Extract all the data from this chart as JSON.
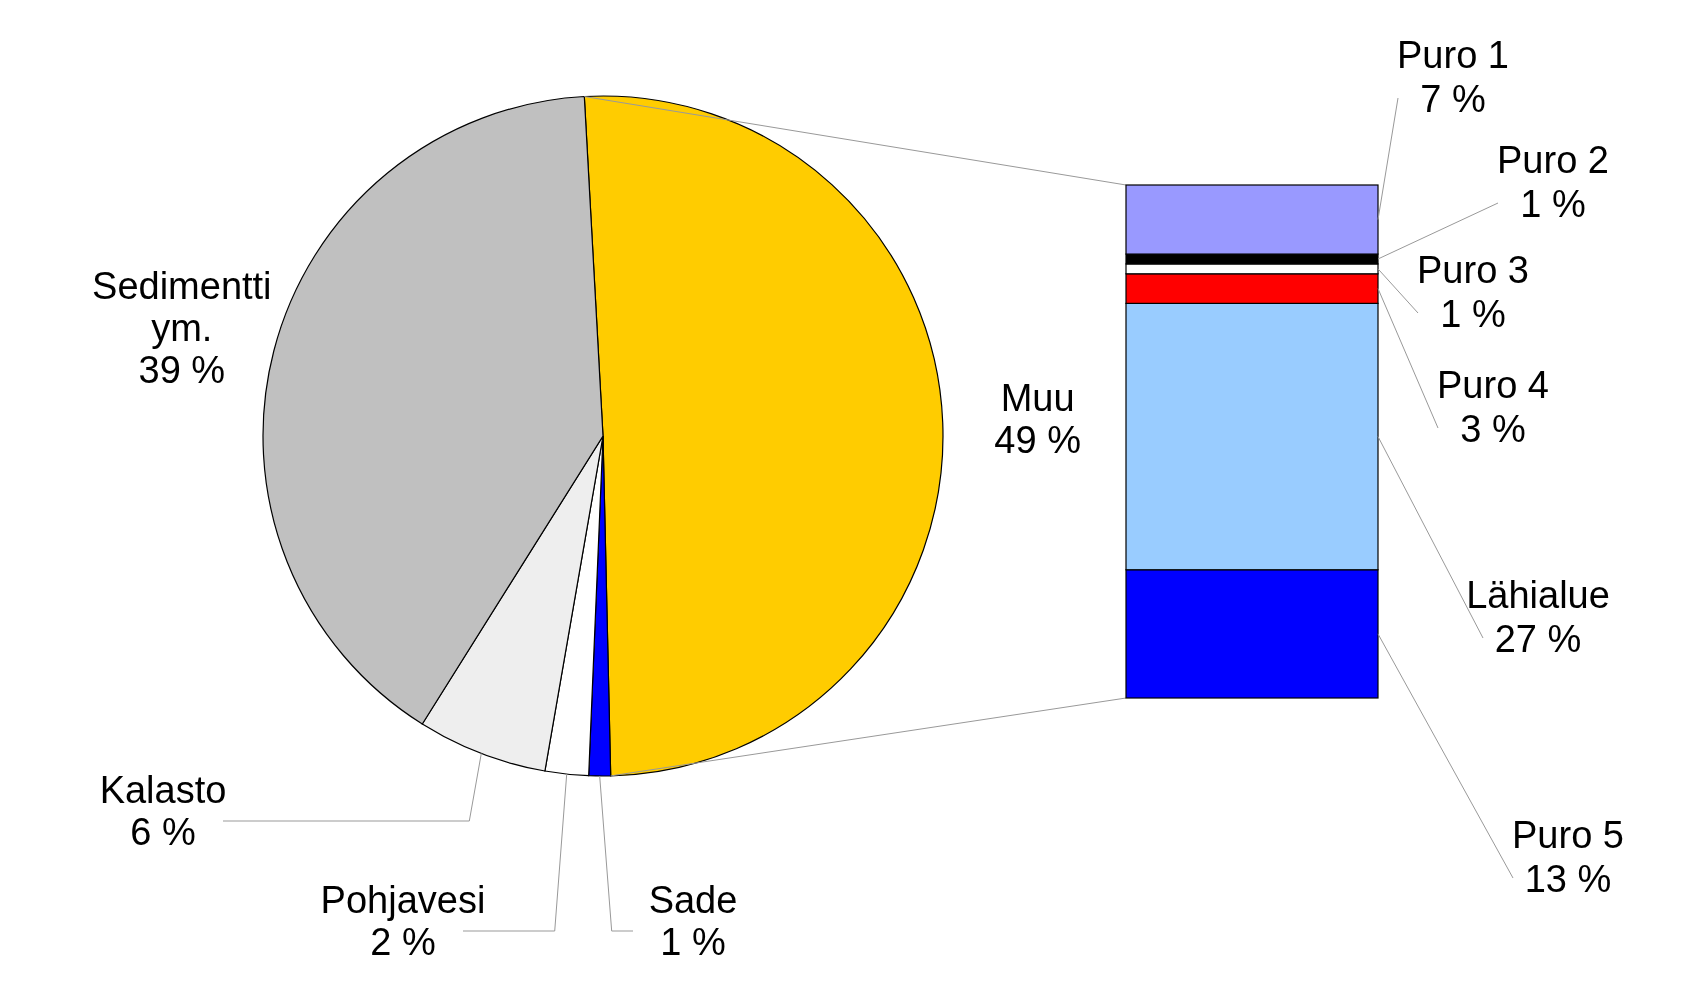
{
  "chart_data": [
    {
      "type": "pie",
      "categories": [
        "Muu",
        "Sade",
        "Pohjavesi",
        "Kalasto",
        "Sedimentti ym."
      ],
      "values": [
        49,
        1,
        2,
        6,
        39
      ],
      "colors": [
        "#ffcc00",
        "#0000ff",
        "#ffffff",
        "#eeeeee",
        "#c0c0c0"
      ],
      "value_labels": [
        "49 %",
        "1 %",
        "2 %",
        "6 %",
        "39 %"
      ]
    },
    {
      "type": "bar",
      "stacked": true,
      "categories": [
        null
      ],
      "series": [
        {
          "name": "Puro 5",
          "color": "#0000ff",
          "values": [
            13
          ],
          "value_labels": [
            "13 %"
          ]
        },
        {
          "name": "Lähialue",
          "color": "#99ccff",
          "values": [
            27
          ],
          "value_labels": [
            "27 %"
          ]
        },
        {
          "name": "Puro 4",
          "color": "#ff0000",
          "values": [
            3
          ],
          "value_labels": [
            "3 %"
          ]
        },
        {
          "name": "Puro 3",
          "color": "#ffffff",
          "values": [
            1
          ],
          "value_labels": [
            "1 %"
          ]
        },
        {
          "name": "Puro 2",
          "color": "#000000",
          "values": [
            1
          ],
          "value_labels": [
            "1 %"
          ]
        },
        {
          "name": "Puro 1",
          "color": "#9999ff",
          "values": [
            7
          ],
          "value_labels": [
            "7 %"
          ]
        }
      ]
    }
  ]
}
